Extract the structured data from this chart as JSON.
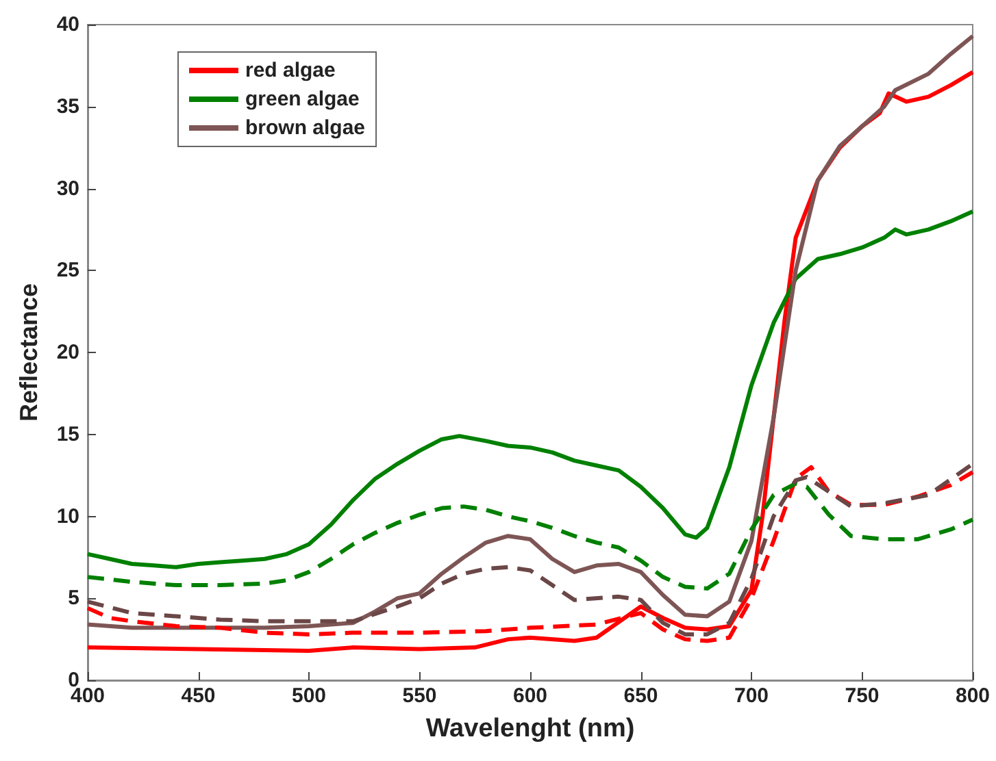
{
  "chart_data": {
    "type": "line",
    "xlabel": "Wavelenght (nm)",
    "ylabel": "Reflectance",
    "xlim": [
      400,
      800
    ],
    "xticks": [
      400,
      450,
      500,
      550,
      600,
      650,
      700,
      750,
      800
    ],
    "ylim": [
      0,
      40
    ],
    "yticks": [
      0,
      5,
      10,
      15,
      20,
      25,
      30,
      35,
      40
    ],
    "grid": false,
    "legend": "top left",
    "marker": "none",
    "series": [
      {
        "name": "red algae",
        "color": "#ff0000",
        "line_style": "solid",
        "x": [
          400,
          450,
          500,
          520,
          550,
          575,
          590,
          600,
          620,
          630,
          650,
          660,
          670,
          680,
          690,
          700,
          705,
          710,
          715,
          720,
          730,
          740,
          750,
          758,
          762,
          770,
          780,
          790,
          800
        ],
        "values": [
          2.0,
          1.9,
          1.8,
          2.0,
          1.9,
          2.0,
          2.5,
          2.6,
          2.4,
          2.6,
          4.5,
          3.8,
          3.2,
          3.1,
          3.3,
          5.5,
          10,
          16,
          22,
          27,
          30.5,
          32.5,
          33.8,
          34.6,
          35.8,
          35.3,
          35.6,
          36.3,
          37.1
        ]
      },
      {
        "name": "green algae",
        "color": "#008000",
        "line_style": "solid",
        "x": [
          400,
          410,
          420,
          430,
          440,
          450,
          460,
          470,
          480,
          490,
          500,
          510,
          520,
          530,
          540,
          550,
          560,
          568,
          580,
          590,
          600,
          610,
          620,
          630,
          640,
          650,
          660,
          670,
          675,
          680,
          690,
          700,
          710,
          720,
          730,
          740,
          750,
          760,
          765,
          770,
          780,
          790,
          800
        ],
        "values": [
          7.7,
          7.4,
          7.1,
          7.0,
          6.9,
          7.1,
          7.2,
          7.3,
          7.4,
          7.7,
          8.3,
          9.5,
          11,
          12.3,
          13.2,
          14.0,
          14.7,
          14.9,
          14.6,
          14.3,
          14.2,
          13.9,
          13.4,
          13.1,
          12.8,
          11.8,
          10.5,
          8.9,
          8.7,
          9.3,
          13,
          18,
          21.8,
          24.5,
          25.7,
          26.0,
          26.4,
          27.0,
          27.5,
          27.2,
          27.5,
          28.0,
          28.6
        ]
      },
      {
        "name": "brown algae",
        "color": "#7e5555",
        "line_style": "solid",
        "x": [
          400,
          420,
          440,
          460,
          480,
          500,
          520,
          530,
          540,
          550,
          560,
          570,
          580,
          590,
          600,
          610,
          620,
          630,
          640,
          650,
          660,
          670,
          680,
          690,
          700,
          710,
          720,
          730,
          740,
          750,
          760,
          765,
          780,
          790,
          800
        ],
        "values": [
          3.4,
          3.2,
          3.2,
          3.2,
          3.2,
          3.3,
          3.5,
          4.2,
          5.0,
          5.3,
          6.5,
          7.5,
          8.4,
          8.8,
          8.6,
          7.4,
          6.6,
          7.0,
          7.1,
          6.6,
          5.2,
          4.0,
          3.9,
          4.8,
          8.5,
          16,
          25,
          30.5,
          32.6,
          33.8,
          35.0,
          36.0,
          37.0,
          38.2,
          39.3
        ]
      },
      {
        "color": "#ff0000",
        "line_style": "dashed",
        "x": [
          400,
          410,
          420,
          440,
          460,
          480,
          500,
          520,
          550,
          580,
          600,
          630,
          650,
          660,
          670,
          680,
          690,
          700,
          710,
          720,
          727,
          735,
          745,
          760,
          775,
          790,
          800
        ],
        "values": [
          4.4,
          3.8,
          3.6,
          3.3,
          3.2,
          2.9,
          2.8,
          2.9,
          2.9,
          3.0,
          3.2,
          3.4,
          4.1,
          3.1,
          2.5,
          2.4,
          2.6,
          5,
          8.5,
          12.3,
          13.0,
          11.5,
          10.7,
          10.7,
          11.2,
          11.9,
          12.7
        ]
      },
      {
        "color": "#008000",
        "line_style": "dashed",
        "x": [
          400,
          420,
          440,
          460,
          480,
          490,
          500,
          510,
          520,
          530,
          540,
          550,
          560,
          570,
          580,
          590,
          600,
          610,
          620,
          630,
          640,
          650,
          660,
          670,
          680,
          690,
          700,
          710,
          720,
          725,
          735,
          745,
          760,
          775,
          790,
          800
        ],
        "values": [
          6.3,
          6.0,
          5.8,
          5.8,
          5.9,
          6.1,
          6.6,
          7.4,
          8.3,
          9.0,
          9.6,
          10.1,
          10.5,
          10.6,
          10.4,
          10.0,
          9.7,
          9.3,
          8.8,
          8.4,
          8.1,
          7.3,
          6.3,
          5.7,
          5.6,
          6.5,
          9.2,
          11.3,
          12.0,
          11.8,
          10.1,
          8.8,
          8.6,
          8.6,
          9.2,
          9.8
        ]
      },
      {
        "color": "#6b4747",
        "line_style": "dashed",
        "x": [
          400,
          420,
          440,
          460,
          480,
          500,
          520,
          540,
          550,
          560,
          570,
          580,
          590,
          600,
          610,
          620,
          640,
          650,
          660,
          670,
          680,
          690,
          700,
          710,
          720,
          725,
          735,
          745,
          760,
          780,
          800
        ],
        "values": [
          4.8,
          4.1,
          3.9,
          3.7,
          3.6,
          3.6,
          3.6,
          4.5,
          5.0,
          5.9,
          6.5,
          6.8,
          6.9,
          6.7,
          5.8,
          4.9,
          5.1,
          4.9,
          3.5,
          2.8,
          2.8,
          3.5,
          6.2,
          10,
          12.2,
          12.4,
          11.5,
          10.6,
          10.8,
          11.3,
          13.2
        ]
      }
    ]
  }
}
